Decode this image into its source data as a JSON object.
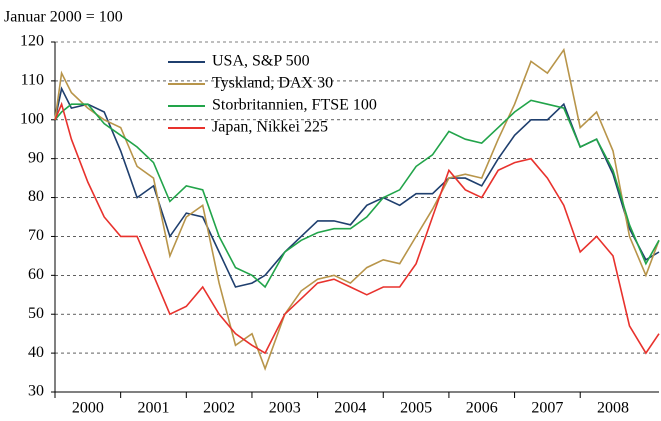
{
  "chart_data": {
    "type": "line",
    "title": "Januar 2000 = 100",
    "x": [
      2000,
      2000.1,
      2000.25,
      2000.5,
      2000.75,
      2001,
      2001.25,
      2001.5,
      2001.75,
      2002,
      2002.25,
      2002.5,
      2002.75,
      2003,
      2003.2,
      2003.5,
      2003.75,
      2004,
      2004.25,
      2004.5,
      2004.75,
      2005,
      2005.25,
      2005.5,
      2005.75,
      2006,
      2006.25,
      2006.5,
      2006.75,
      2007,
      2007.25,
      2007.5,
      2007.75,
      2008,
      2008.25,
      2008.5,
      2008.75,
      2009,
      2009.2
    ],
    "series": [
      {
        "name": "USA, S&P 500",
        "color": "#1f3f6e",
        "values": [
          100,
          108,
          103,
          104,
          102,
          92,
          80,
          83,
          70,
          76,
          75,
          66,
          57,
          58,
          60,
          66,
          70,
          74,
          74,
          73,
          78,
          80,
          78,
          81,
          81,
          85,
          85,
          83,
          90,
          96,
          100,
          100,
          104,
          93,
          95,
          86,
          72,
          64,
          66
        ]
      },
      {
        "name": "Tyskland, DAX 30",
        "color": "#b8954a",
        "values": [
          100,
          112,
          107,
          103,
          100,
          98,
          88,
          85,
          65,
          75,
          78,
          58,
          42,
          45,
          36,
          50,
          56,
          59,
          60,
          58,
          62,
          64,
          63,
          70,
          77,
          85,
          86,
          85,
          95,
          104,
          115,
          112,
          118,
          98,
          102,
          92,
          70,
          60,
          69
        ]
      },
      {
        "name": "Storbritannien, FTSE 100",
        "color": "#22a44a",
        "values": [
          100,
          102,
          104,
          104,
          99,
          96,
          93,
          89,
          79,
          83,
          82,
          70,
          62,
          60,
          57,
          66,
          69,
          71,
          72,
          72,
          75,
          80,
          82,
          88,
          91,
          97,
          95,
          94,
          98,
          102,
          105,
          104,
          103,
          93,
          95,
          87,
          73,
          63,
          69
        ]
      },
      {
        "name": "Japan, Nikkei 225",
        "color": "#e8322d",
        "values": [
          100,
          104,
          95,
          84,
          75,
          70,
          70,
          60,
          50,
          52,
          57,
          50,
          45,
          42,
          40,
          50,
          54,
          58,
          59,
          57,
          55,
          57,
          57,
          63,
          75,
          87,
          82,
          80,
          87,
          89,
          90,
          85,
          78,
          66,
          70,
          65,
          47,
          40,
          45
        ]
      }
    ],
    "xlim": [
      2000,
      2009.2
    ],
    "xticks": [
      {
        "value": 2000.5,
        "label": "2000"
      },
      {
        "value": 2001.5,
        "label": "2001"
      },
      {
        "value": 2002.5,
        "label": "2002"
      },
      {
        "value": 2003.5,
        "label": "2003"
      },
      {
        "value": 2004.5,
        "label": "2004"
      },
      {
        "value": 2005.5,
        "label": "2005"
      },
      {
        "value": 2006.5,
        "label": "2006"
      },
      {
        "value": 2007.5,
        "label": "2007"
      },
      {
        "value": 2008.5,
        "label": "2008"
      }
    ],
    "ylim": [
      30,
      120
    ],
    "yticks": [
      30,
      40,
      50,
      60,
      70,
      80,
      90,
      100,
      110,
      120
    ],
    "grid": true
  }
}
